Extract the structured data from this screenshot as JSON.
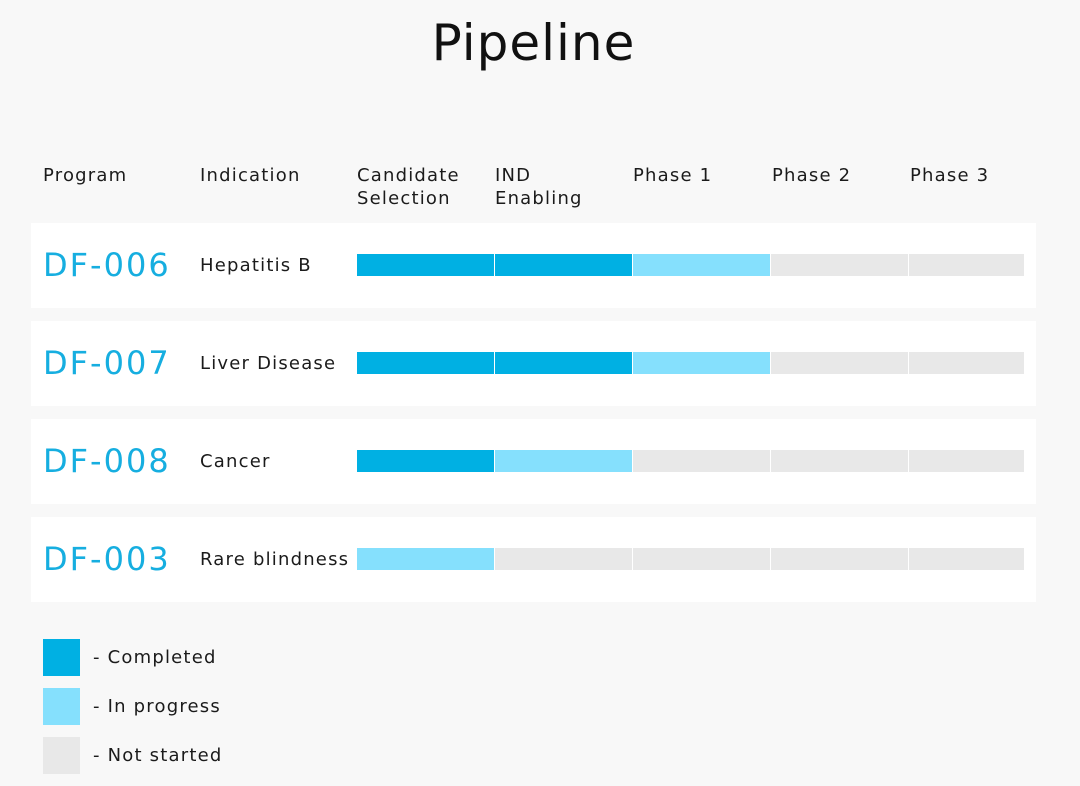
{
  "title": "Pipeline",
  "columns": [
    "Program",
    "Indication",
    "Candidate\nSelection",
    "IND\nEnabling",
    "Phase 1",
    "Phase 2",
    "Phase 3"
  ],
  "status_colors": {
    "completed": "#00b0e3",
    "in_progress": "#85e0fd",
    "not_started": "#e8e8e8"
  },
  "programs": [
    {
      "code": "DF-006",
      "indication": "Hepatitis B",
      "stages": [
        "completed",
        "completed",
        "in_progress",
        "not_started",
        "not_started"
      ]
    },
    {
      "code": "DF-007",
      "indication": "Liver Disease",
      "stages": [
        "completed",
        "completed",
        "in_progress",
        "not_started",
        "not_started"
      ]
    },
    {
      "code": "DF-008",
      "indication": "Cancer",
      "stages": [
        "completed",
        "in_progress",
        "not_started",
        "not_started",
        "not_started"
      ]
    },
    {
      "code": "DF-003",
      "indication": "Rare blindness",
      "stages": [
        "in_progress",
        "not_started",
        "not_started",
        "not_started",
        "not_started"
      ]
    }
  ],
  "legend": [
    {
      "status": "completed",
      "label": "- Completed"
    },
    {
      "status": "in_progress",
      "label": "- In progress"
    },
    {
      "status": "not_started",
      "label": "- Not started"
    }
  ]
}
